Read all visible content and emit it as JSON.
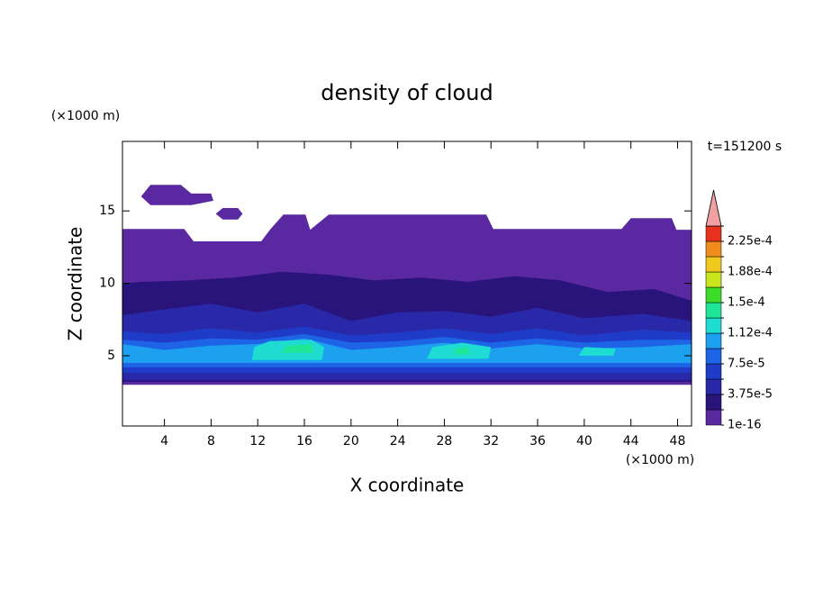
{
  "chart_data": {
    "type": "contour",
    "title": "density of cloud",
    "x_label": "X coordinate",
    "y_label": "Z coordinate",
    "x_unit": "(×1000 m)",
    "y_unit": "(×1000 m)",
    "time_label": "t=151200 s",
    "xlim": [
      0.4,
      49.2
    ],
    "ylim": [
      0.15,
      19.8
    ],
    "xticks": [
      4,
      8,
      12,
      16,
      20,
      24,
      28,
      32,
      36,
      40,
      44,
      48
    ],
    "yticks": [
      5,
      10,
      15
    ],
    "levels": [
      {
        "value": 1e-16,
        "label": "1e-16"
      },
      1.875e-05,
      {
        "value": 3.75e-05,
        "label": "3.75e-5"
      },
      5.625e-05,
      {
        "value": 7.5e-05,
        "label": "7.5e-5"
      },
      9.375e-05,
      {
        "value": 0.000112,
        "label": "1.12e-4"
      },
      0.00013125,
      {
        "value": 0.00015,
        "label": "1.5e-4"
      },
      0.00016875,
      {
        "value": 0.000188,
        "label": "1.88e-4"
      },
      0.00020625,
      {
        "value": 0.000225,
        "label": "2.25e-4"
      },
      0.00024375
    ],
    "colors": [
      "#5a28a0",
      "#28147a",
      "#2828a8",
      "#1e3cc8",
      "#1e64e6",
      "#1ea0f0",
      "#1edcd2",
      "#1ee696",
      "#3cdc28",
      "#c8e61e",
      "#f0c81e",
      "#f08c1e",
      "#e6321e"
    ],
    "overflow_color": "#f0a0a0",
    "regions": [
      {
        "level": 0,
        "points": [
          [
            0.4,
            3.0
          ],
          [
            49.2,
            3.0
          ],
          [
            49.2,
            13.7
          ],
          [
            47.9,
            13.7
          ],
          [
            47.5,
            14.5
          ],
          [
            44,
            14.5
          ],
          [
            43.2,
            13.75
          ],
          [
            32.2,
            13.75
          ],
          [
            31.6,
            14.75
          ],
          [
            18.1,
            14.75
          ],
          [
            16.5,
            13.7
          ],
          [
            16.1,
            14.75
          ],
          [
            14.2,
            14.75
          ],
          [
            13.05,
            13.7
          ],
          [
            12.3,
            12.9
          ],
          [
            6.5,
            12.9
          ],
          [
            5.7,
            13.75
          ],
          [
            0.4,
            13.75
          ]
        ]
      },
      {
        "level": 0,
        "points": [
          [
            2,
            16
          ],
          [
            2.8,
            16.8
          ],
          [
            5.4,
            16.8
          ],
          [
            6.3,
            16.2
          ],
          [
            8,
            16.2
          ],
          [
            8.2,
            15.7
          ],
          [
            6.3,
            15.4
          ],
          [
            2.8,
            15.4
          ]
        ]
      },
      {
        "level": 0,
        "points": [
          [
            8.4,
            14.8
          ],
          [
            9,
            15.2
          ],
          [
            10.3,
            15.2
          ],
          [
            10.7,
            14.8
          ],
          [
            10.3,
            14.4
          ],
          [
            9,
            14.4
          ]
        ]
      },
      {
        "level": 1,
        "points": [
          [
            0.4,
            3.2
          ],
          [
            49.2,
            3.2
          ],
          [
            49.2,
            8.8
          ],
          [
            46,
            9.6
          ],
          [
            42,
            9.4
          ],
          [
            38,
            10.2
          ],
          [
            34,
            10.5
          ],
          [
            30,
            10.1
          ],
          [
            26,
            10.4
          ],
          [
            22,
            10.2
          ],
          [
            18,
            10.6
          ],
          [
            14,
            10.8
          ],
          [
            10,
            10.4
          ],
          [
            6,
            10.2
          ],
          [
            2,
            10.1
          ],
          [
            0.4,
            10
          ]
        ]
      },
      {
        "level": 2,
        "points": [
          [
            0.4,
            3.3
          ],
          [
            49.2,
            3.3
          ],
          [
            49.2,
            7.4
          ],
          [
            45,
            7.9
          ],
          [
            40,
            7.6
          ],
          [
            36,
            8.3
          ],
          [
            32,
            7.7
          ],
          [
            28,
            8.1
          ],
          [
            24,
            8.0
          ],
          [
            20,
            7.4
          ],
          [
            16,
            8.6
          ],
          [
            12,
            8.0
          ],
          [
            8,
            8.6
          ],
          [
            4,
            8.2
          ],
          [
            0.4,
            7.8
          ]
        ]
      },
      {
        "level": 3,
        "points": [
          [
            0.4,
            3.8
          ],
          [
            49.2,
            3.8
          ],
          [
            49.2,
            6.6
          ],
          [
            45,
            6.8
          ],
          [
            40,
            6.4
          ],
          [
            36,
            6.9
          ],
          [
            32,
            6.5
          ],
          [
            28,
            6.9
          ],
          [
            24,
            6.6
          ],
          [
            20,
            6.4
          ],
          [
            16,
            7.0
          ],
          [
            12,
            6.6
          ],
          [
            8,
            6.9
          ],
          [
            4,
            6.5
          ],
          [
            0.4,
            6.7
          ]
        ]
      },
      {
        "level": 4,
        "points": [
          [
            0.4,
            4.2
          ],
          [
            49.2,
            4.2
          ],
          [
            49.2,
            6.1
          ],
          [
            45,
            6.1
          ],
          [
            40,
            5.9
          ],
          [
            36,
            6.2
          ],
          [
            32,
            5.9
          ],
          [
            28,
            6.3
          ],
          [
            24,
            6.0
          ],
          [
            20,
            5.9
          ],
          [
            16,
            6.5
          ],
          [
            12,
            6.1
          ],
          [
            8,
            6.2
          ],
          [
            4,
            5.9
          ],
          [
            0.4,
            6.1
          ]
        ]
      },
      {
        "level": 5,
        "points": [
          [
            0.4,
            4.5
          ],
          [
            49.2,
            4.5
          ],
          [
            49.2,
            5.8
          ],
          [
            45,
            5.6
          ],
          [
            40,
            5.5
          ],
          [
            36,
            5.8
          ],
          [
            32,
            5.5
          ],
          [
            28,
            5.9
          ],
          [
            24,
            5.6
          ],
          [
            20,
            5.4
          ],
          [
            16,
            6.2
          ],
          [
            12,
            5.8
          ],
          [
            8,
            5.7
          ],
          [
            4,
            5.4
          ],
          [
            0.4,
            5.8
          ]
        ]
      },
      {
        "level": 6,
        "points": [
          [
            11.5,
            4.7
          ],
          [
            17.5,
            4.7
          ],
          [
            17.7,
            5.6
          ],
          [
            16.6,
            6.1
          ],
          [
            13,
            6.0
          ],
          [
            11.7,
            5.6
          ]
        ]
      },
      {
        "level": 6,
        "points": [
          [
            26.5,
            4.8
          ],
          [
            31.8,
            4.8
          ],
          [
            32,
            5.6
          ],
          [
            29.5,
            5.9
          ],
          [
            27,
            5.6
          ]
        ]
      },
      {
        "level": 6,
        "points": [
          [
            39.5,
            5.0
          ],
          [
            42.5,
            5.0
          ],
          [
            42.7,
            5.5
          ],
          [
            40,
            5.6
          ]
        ]
      },
      {
        "level": 7,
        "points": [
          [
            14,
            5.2
          ],
          [
            16.8,
            5.2
          ],
          [
            16.6,
            5.8
          ],
          [
            14.5,
            5.7
          ]
        ]
      },
      {
        "level": 7,
        "points": [
          [
            28.8,
            5.1
          ],
          [
            30.2,
            5.1
          ],
          [
            30.0,
            5.6
          ],
          [
            29,
            5.5
          ]
        ]
      }
    ]
  }
}
